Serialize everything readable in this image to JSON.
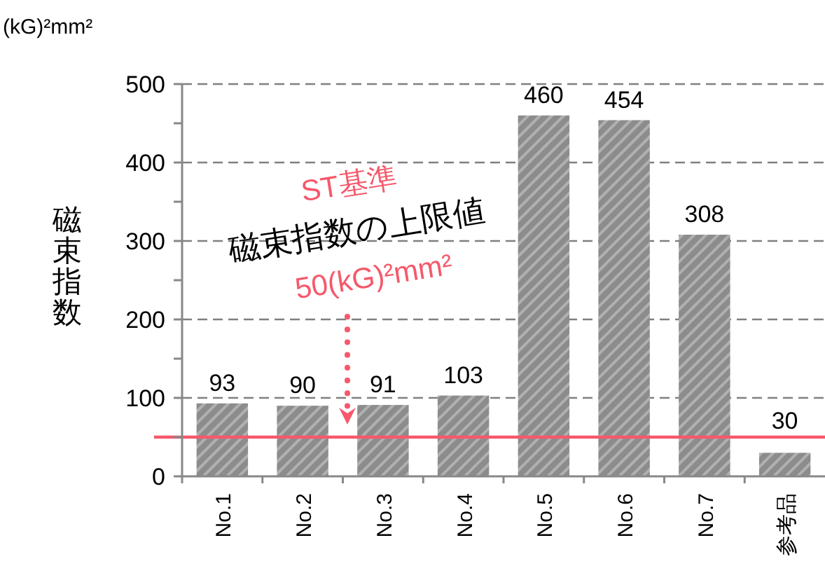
{
  "chart_data": {
    "type": "bar",
    "ylabel": "磁束指数",
    "categories": [
      "No.1",
      "No.2",
      "No.3",
      "No.4",
      "No.5",
      "No.6",
      "No.7",
      "参考品"
    ],
    "values": [
      93,
      90,
      91,
      103,
      460,
      454,
      308,
      30
    ],
    "color": "#8c8c8c",
    "data_labels": true,
    "ylim": [
      0,
      500
    ],
    "yticks": [
      0,
      {
        "value": 50,
        "label": null
      },
      100,
      {
        "value": 150,
        "label": null
      },
      200,
      {
        "value": 250,
        "label": null
      },
      300,
      {
        "value": 350,
        "label": null
      },
      400,
      {
        "value": 450,
        "label": null
      },
      500
    ],
    "grid": "y",
    "ref_lines": [
      {
        "axis": "y",
        "value": 50,
        "color": "#f5596b"
      }
    ],
    "annotations": [
      "(kG)²mm²",
      "ST基準",
      "磁束指数の上限値",
      "50(kG)²mm²"
    ]
  }
}
